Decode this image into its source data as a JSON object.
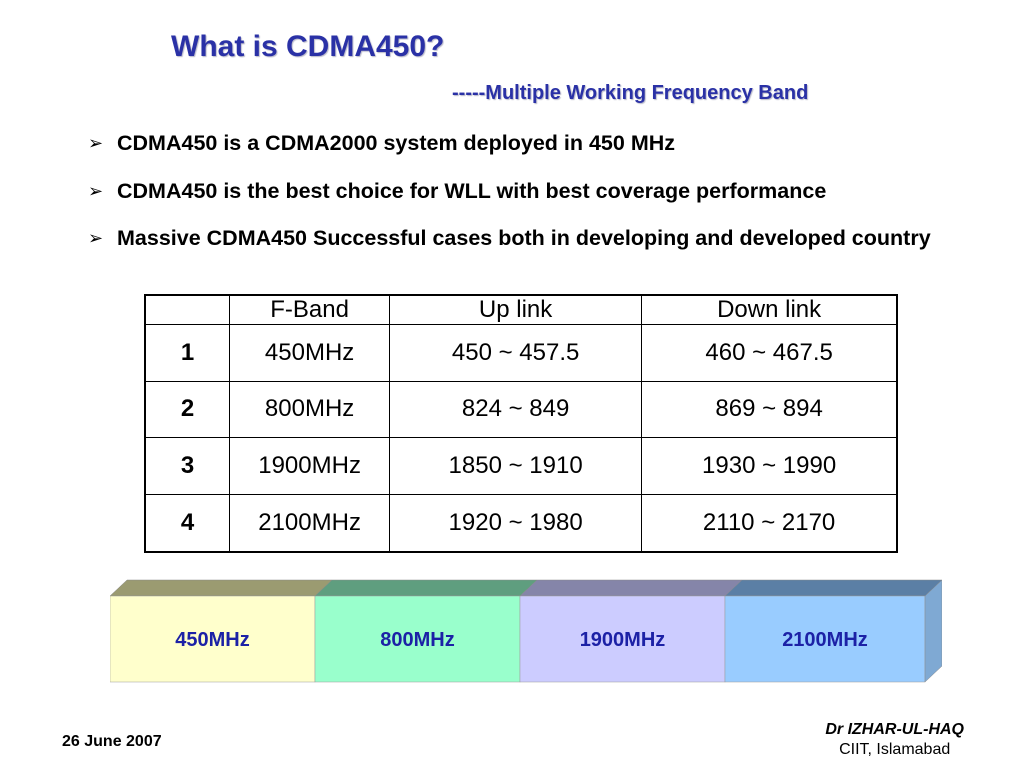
{
  "slide": {
    "title": "What is CDMA450?",
    "subtitle": "-----Multiple Working Frequency Band",
    "bullet_glyph": "➢",
    "bullets": [
      "CDMA450 is a CDMA2000 system deployed in 450 MHz",
      "CDMA450 is the best choice for WLL with best coverage performance",
      "Massive CDMA450 Successful cases both in developing and developed country"
    ]
  },
  "table": {
    "headers": [
      "",
      "F-Band",
      "Up link",
      "Down link"
    ],
    "rows": [
      [
        "1",
        "450MHz",
        "450 ~ 457.5",
        "460 ~ 467.5"
      ],
      [
        "2",
        "800MHz",
        "824 ~ 849",
        "869 ~ 894"
      ],
      [
        "3",
        "1900MHz",
        "1850 ~ 1910",
        "1930 ~ 1990"
      ],
      [
        "4",
        "2100MHz",
        "1920 ~ 1980",
        "2110 ~ 2170"
      ]
    ]
  },
  "band_bar": {
    "segments": [
      {
        "label": "450MHz",
        "face": "#ffffcc",
        "top": "#9b9b71",
        "edge": "#c9c999"
      },
      {
        "label": "800MHz",
        "face": "#99ffcc",
        "top": "#5f9e7f",
        "edge": "#7fd3a9"
      },
      {
        "label": "1900MHz",
        "face": "#ccccff",
        "top": "#8585a9",
        "edge": "#a9a9d3"
      },
      {
        "label": "2100MHz",
        "face": "#99ccff",
        "top": "#5b7fa5",
        "edge": "#7fa9d3"
      }
    ],
    "label_color": "#1c21a6"
  },
  "footer": {
    "date": "26 June 2007",
    "author": "Dr IZHAR-UL-HAQ",
    "institution": "CIIT, Islamabad"
  }
}
